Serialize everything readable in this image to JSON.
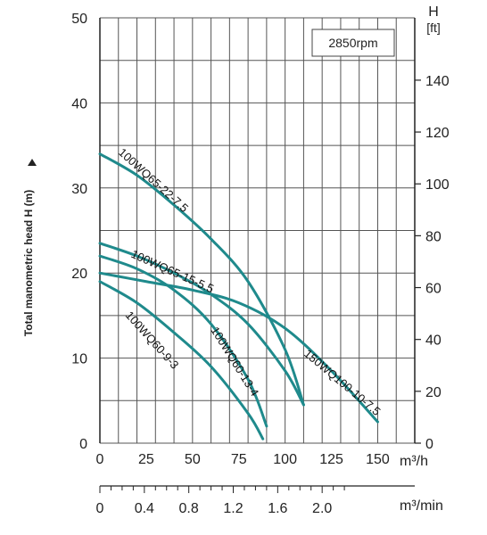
{
  "chart_data": {
    "type": "line",
    "speed_label": "2850rpm",
    "ylabel": "Total manometric head H (m)",
    "y_right_label_top": "H",
    "y_right_label_bottom": "[ft]",
    "x_unit_1": "m³/h",
    "x_unit_2": "m³/min",
    "x_ticks_m3h": [
      "0",
      "25",
      "50",
      "75",
      "100",
      "125",
      "150"
    ],
    "x_ticks_m3min": [
      "0",
      "0.4",
      "0.8",
      "1.2",
      "1.6",
      "2.0"
    ],
    "y_ticks_m": [
      "0",
      "10",
      "20",
      "30",
      "40",
      "50"
    ],
    "y_ticks_ft": [
      "0",
      "20",
      "40",
      "60",
      "80",
      "100",
      "120",
      "140"
    ],
    "xlim_m3h": [
      0,
      170
    ],
    "ylim_m": [
      0,
      50
    ],
    "grid": true,
    "colors": {
      "curve": "#1f8a8c",
      "grid": "#555555",
      "axis": "#222222"
    },
    "series": [
      {
        "name": "100WQ65-22-7.5",
        "x": [
          0,
          20,
          40,
          60,
          80,
          100,
          110
        ],
        "y": [
          34,
          31.5,
          28,
          24,
          19,
          11,
          4.5
        ]
      },
      {
        "name": "100WQ65-15-5.5",
        "x": [
          0,
          20,
          40,
          60,
          80,
          100,
          110
        ],
        "y": [
          23.5,
          22,
          20,
          17.5,
          14,
          8.5,
          4.5
        ]
      },
      {
        "name": "100WQ60-13-4",
        "x": [
          0,
          20,
          40,
          60,
          80,
          90
        ],
        "y": [
          22,
          20.5,
          18,
          14,
          7.5,
          2
        ]
      },
      {
        "name": "100WQ60-9-3",
        "x": [
          0,
          20,
          40,
          60,
          80,
          88
        ],
        "y": [
          19,
          16.5,
          13,
          9,
          3.5,
          0.5
        ]
      },
      {
        "name": "150WQ100-10-7.5",
        "x": [
          0,
          25,
          50,
          75,
          100,
          125,
          150
        ],
        "y": [
          20,
          19,
          18,
          16.5,
          13.5,
          8.5,
          2.5
        ]
      }
    ]
  }
}
